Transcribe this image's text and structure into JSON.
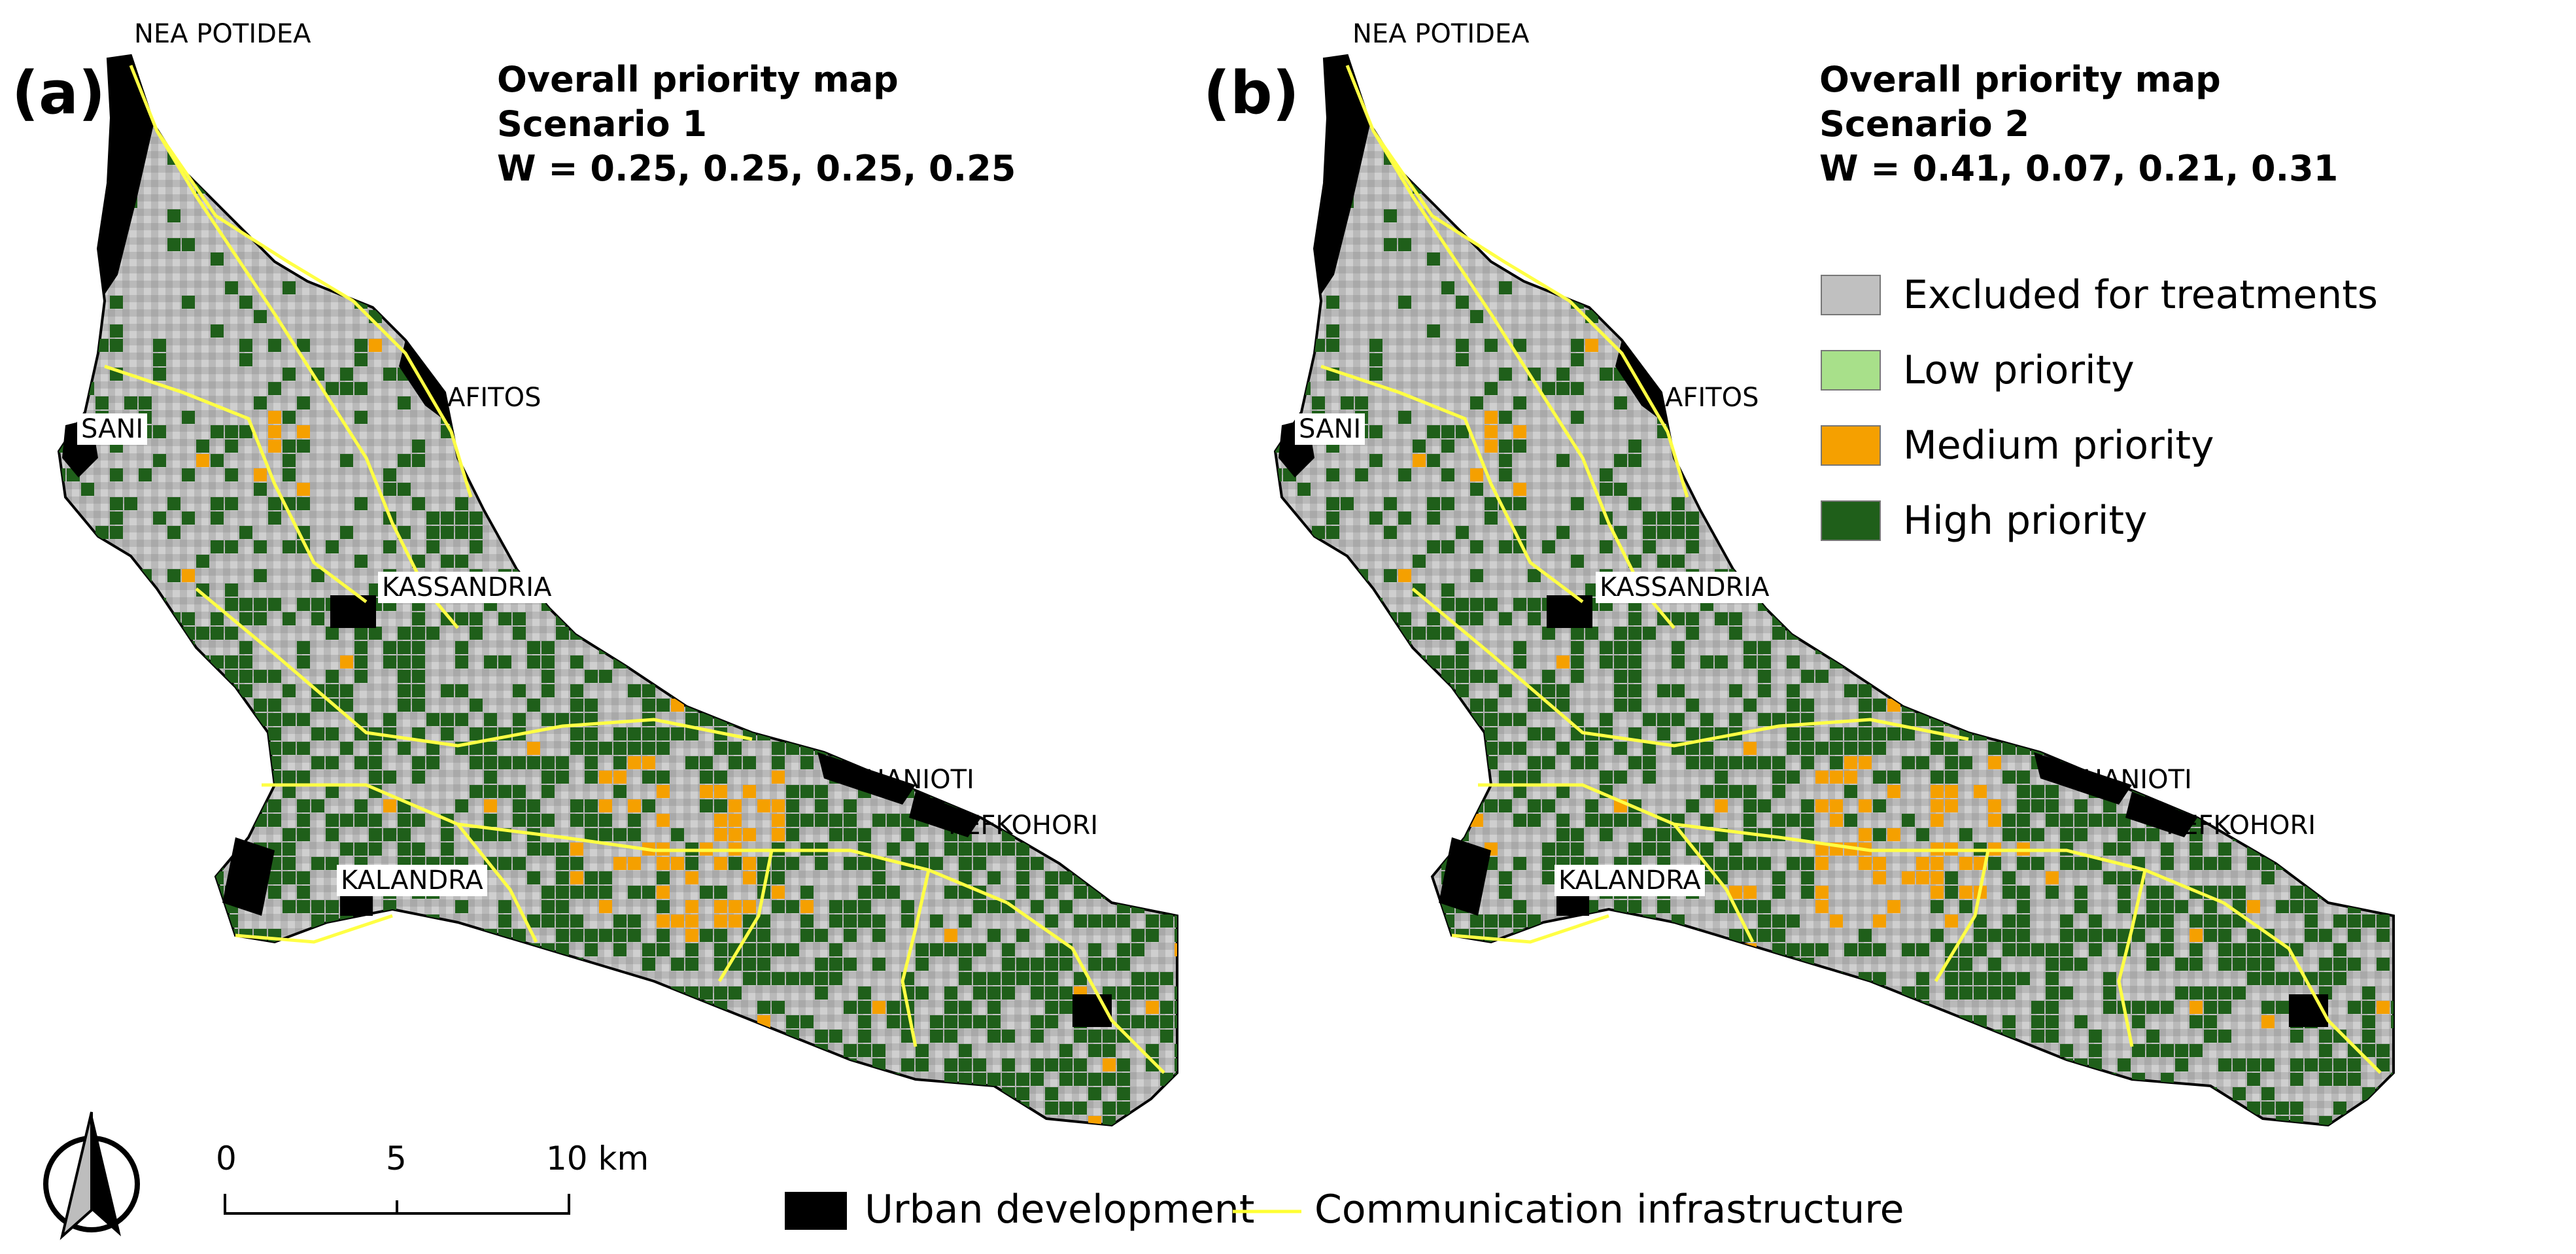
{
  "panels": [
    {
      "letter": "(a)",
      "title_lines": [
        "Overall priority map",
        "Scenario 1",
        "W = 0.25, 0.25, 0.25, 0.25"
      ]
    },
    {
      "letter": "(b)",
      "title_lines": [
        "Overall priority map",
        "Scenario 2",
        "W = 0.41, 0.07, 0.21, 0.31"
      ]
    }
  ],
  "place_names": {
    "nea_potidea": "NEA POTIDEA",
    "afitos": "AFITOS",
    "sani": "SANI",
    "kassandria": "KASSANDRIA",
    "chanioti": "CHANIOTI",
    "pefkohori": "PEFKOHORI",
    "kalandra": "KALANDRA"
  },
  "priority_legend": [
    {
      "label": "Excluded for treatments",
      "color": "#c0c0c0"
    },
    {
      "label": "Low priority",
      "color": "#a8e08a"
    },
    {
      "label": "Medium priority",
      "color": "#f5a000"
    },
    {
      "label": "High priority",
      "color": "#1f5f1a"
    }
  ],
  "bottom_legend": {
    "urban": {
      "label": "Urban development",
      "color": "#000000"
    },
    "infrastructure": {
      "label": "Communication infrastructure",
      "color": "#ffff33"
    }
  },
  "scale_bar": {
    "labels": [
      "0",
      "5",
      "10 km"
    ]
  },
  "north_arrow": {
    "icon": "north-arrow-icon"
  }
}
